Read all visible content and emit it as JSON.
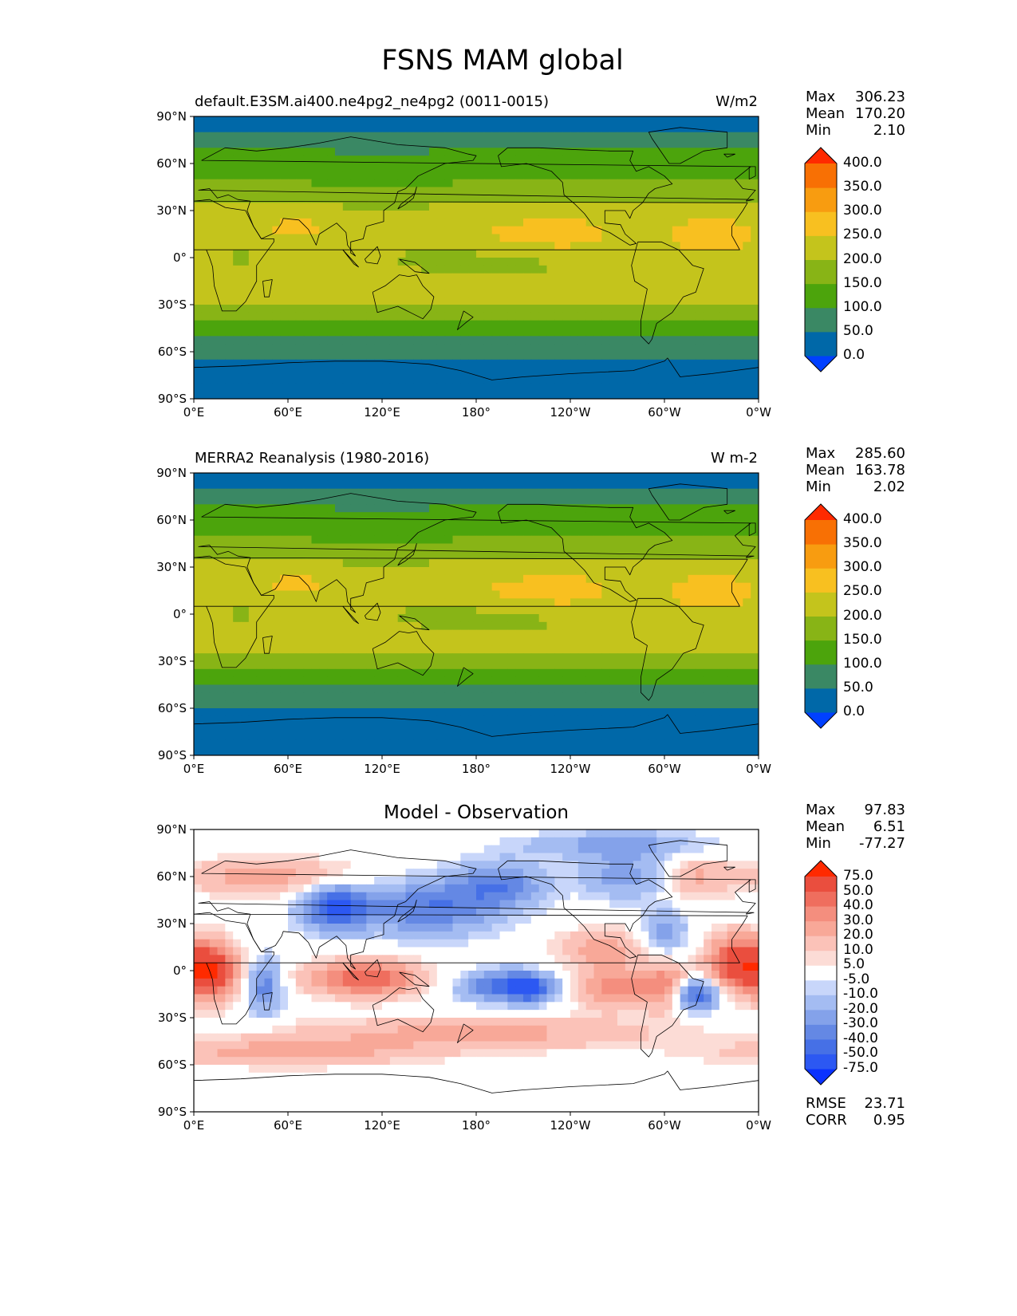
{
  "title": "FSNS MAM global",
  "panels": [
    {
      "id": "test",
      "title_left": "default.E3SM.ai400.ne4pg2_ne4pg2 (0011-0015)",
      "title_right": "W/m2",
      "stats": [
        {
          "label": "Max",
          "value": "306.23"
        },
        {
          "label": "Mean",
          "value": "170.20"
        },
        {
          "label": "Min",
          "value": "2.10"
        }
      ],
      "colorbar": {
        "labels": [
          "400.0",
          "350.0",
          "300.0",
          "250.0",
          "200.0",
          "150.0",
          "100.0",
          "50.0",
          "0.0"
        ],
        "colors": [
          "#0040ff",
          "#0068a8",
          "#3a8864",
          "#4ca40c",
          "#88b416",
          "#c4c41c",
          "#f8c020",
          "#f89c10",
          "#f87004",
          "#ff2a00"
        ]
      }
    },
    {
      "id": "reference",
      "title_left": "MERRA2 Reanalysis (1980-2016)",
      "title_right": "W m-2",
      "stats": [
        {
          "label": "Max",
          "value": "285.60"
        },
        {
          "label": "Mean",
          "value": "163.78"
        },
        {
          "label": "Min",
          "value": "2.02"
        }
      ],
      "colorbar": {
        "labels": [
          "400.0",
          "350.0",
          "300.0",
          "250.0",
          "200.0",
          "150.0",
          "100.0",
          "50.0",
          "0.0"
        ],
        "colors": [
          "#0040ff",
          "#0068a8",
          "#3a8864",
          "#4ca40c",
          "#88b416",
          "#c4c41c",
          "#f8c020",
          "#f89c10",
          "#f87004",
          "#ff2a00"
        ]
      }
    },
    {
      "id": "difference",
      "title_center": "Model - Observation",
      "stats": [
        {
          "label": "Max",
          "value": "97.83"
        },
        {
          "label": "Mean",
          "value": "6.51"
        },
        {
          "label": "Min",
          "value": "-77.27"
        }
      ],
      "colorbar": {
        "labels": [
          "75.0",
          "50.0",
          "40.0",
          "30.0",
          "20.0",
          "10.0",
          "5.0",
          "-5.0",
          "-10.0",
          "-20.0",
          "-30.0",
          "-40.0",
          "-50.0",
          "-75.0"
        ],
        "colors": [
          "#0a32ff",
          "#2c58f2",
          "#4670e6",
          "#6488e4",
          "#84a2ea",
          "#a4bcf2",
          "#c8d6fa",
          "#ffffff",
          "#fcdcd6",
          "#fbc2b8",
          "#f8a898",
          "#f48e7e",
          "#ef6e5e",
          "#ea4e3e",
          "#ff2a00"
        ]
      },
      "rmse": {
        "label": "RMSE",
        "value": "23.71"
      },
      "corr": {
        "label": "CORR",
        "value": "0.95"
      }
    }
  ],
  "axes": {
    "x_ticks": [
      "0°E",
      "60°E",
      "120°E",
      "180°",
      "120°W",
      "60°W",
      "0°W"
    ],
    "y_ticks": [
      "90°N",
      "60°N",
      "30°N",
      "0°",
      "30°S",
      "60°S",
      "90°S"
    ]
  },
  "chart_data": [
    {
      "type": "heatmap",
      "title": "default.E3SM.ai400.ne4pg2_ne4pg2 (0011-0015)",
      "units": "W/m2",
      "x": [
        0,
        60,
        120,
        180,
        240,
        300,
        360
      ],
      "y": [
        -90,
        -60,
        -30,
        0,
        30,
        60,
        90
      ],
      "xlim": [
        0,
        360
      ],
      "ylim": [
        -90,
        90
      ],
      "levels": [
        0,
        50,
        100,
        150,
        200,
        250,
        300,
        350,
        400
      ],
      "zonal_mean_by_lat": {
        "lat": [
          90,
          75,
          60,
          45,
          30,
          15,
          0,
          -15,
          -30,
          -45,
          -60,
          -75,
          -90
        ],
        "value": [
          40,
          80,
          120,
          160,
          200,
          235,
          230,
          225,
          200,
          150,
          90,
          40,
          10
        ]
      },
      "max": 306.23,
      "mean": 170.2,
      "min": 2.1
    },
    {
      "type": "heatmap",
      "title": "MERRA2 Reanalysis (1980-2016)",
      "units": "W m-2",
      "x": [
        0,
        60,
        120,
        180,
        240,
        300,
        360
      ],
      "y": [
        -90,
        -60,
        -30,
        0,
        30,
        60,
        90
      ],
      "xlim": [
        0,
        360
      ],
      "ylim": [
        -90,
        90
      ],
      "levels": [
        0,
        50,
        100,
        150,
        200,
        250,
        300,
        350,
        400
      ],
      "zonal_mean_by_lat": {
        "lat": [
          90,
          75,
          60,
          45,
          30,
          15,
          0,
          -15,
          -30,
          -45,
          -60,
          -75,
          -90
        ],
        "value": [
          40,
          85,
          125,
          160,
          205,
          240,
          220,
          215,
          190,
          130,
          70,
          40,
          10
        ]
      },
      "max": 285.6,
      "mean": 163.78,
      "min": 2.02
    },
    {
      "type": "heatmap",
      "title": "Model - Observation",
      "x": [
        0,
        60,
        120,
        180,
        240,
        300,
        360
      ],
      "y": [
        -90,
        -60,
        -30,
        0,
        30,
        60,
        90
      ],
      "xlim": [
        0,
        360
      ],
      "ylim": [
        -90,
        90
      ],
      "levels": [
        -75,
        -50,
        -40,
        -30,
        -20,
        -10,
        -5,
        5,
        10,
        20,
        30,
        40,
        50,
        75
      ],
      "max": 97.83,
      "mean": 6.51,
      "min": -77.27,
      "rmse": 23.71,
      "corr": 0.95
    }
  ]
}
